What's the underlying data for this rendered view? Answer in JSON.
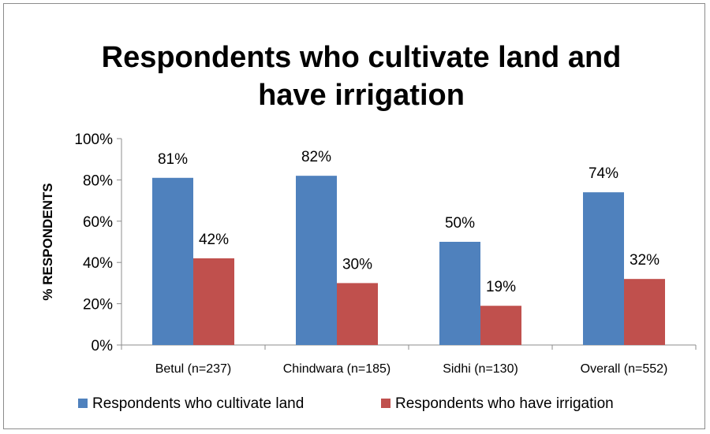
{
  "chart_data": {
    "type": "bar",
    "title_line1": "Respondents who cultivate land and",
    "title_line2": "have irrigation",
    "xlabel": "",
    "ylabel": "% RESPONDENTS",
    "ylim": [
      0,
      100
    ],
    "yticks": [
      "0%",
      "20%",
      "40%",
      "60%",
      "80%",
      "100%"
    ],
    "grid": false,
    "legend_position": "bottom",
    "categories": [
      "Betul (n=237)",
      "Chindwara (n=185)",
      "Sidhi (n=130)",
      "Overall (n=552)"
    ],
    "series": [
      {
        "name": "Respondents who cultivate land",
        "color": "#4f81bd",
        "values": [
          81,
          82,
          50,
          74
        ],
        "labels": [
          "81%",
          "82%",
          "50%",
          "74%"
        ]
      },
      {
        "name": "Respondents who have irrigation",
        "color": "#c0504d",
        "values": [
          42,
          30,
          19,
          32
        ],
        "labels": [
          "42%",
          "30%",
          "19%",
          "32%"
        ]
      }
    ]
  }
}
